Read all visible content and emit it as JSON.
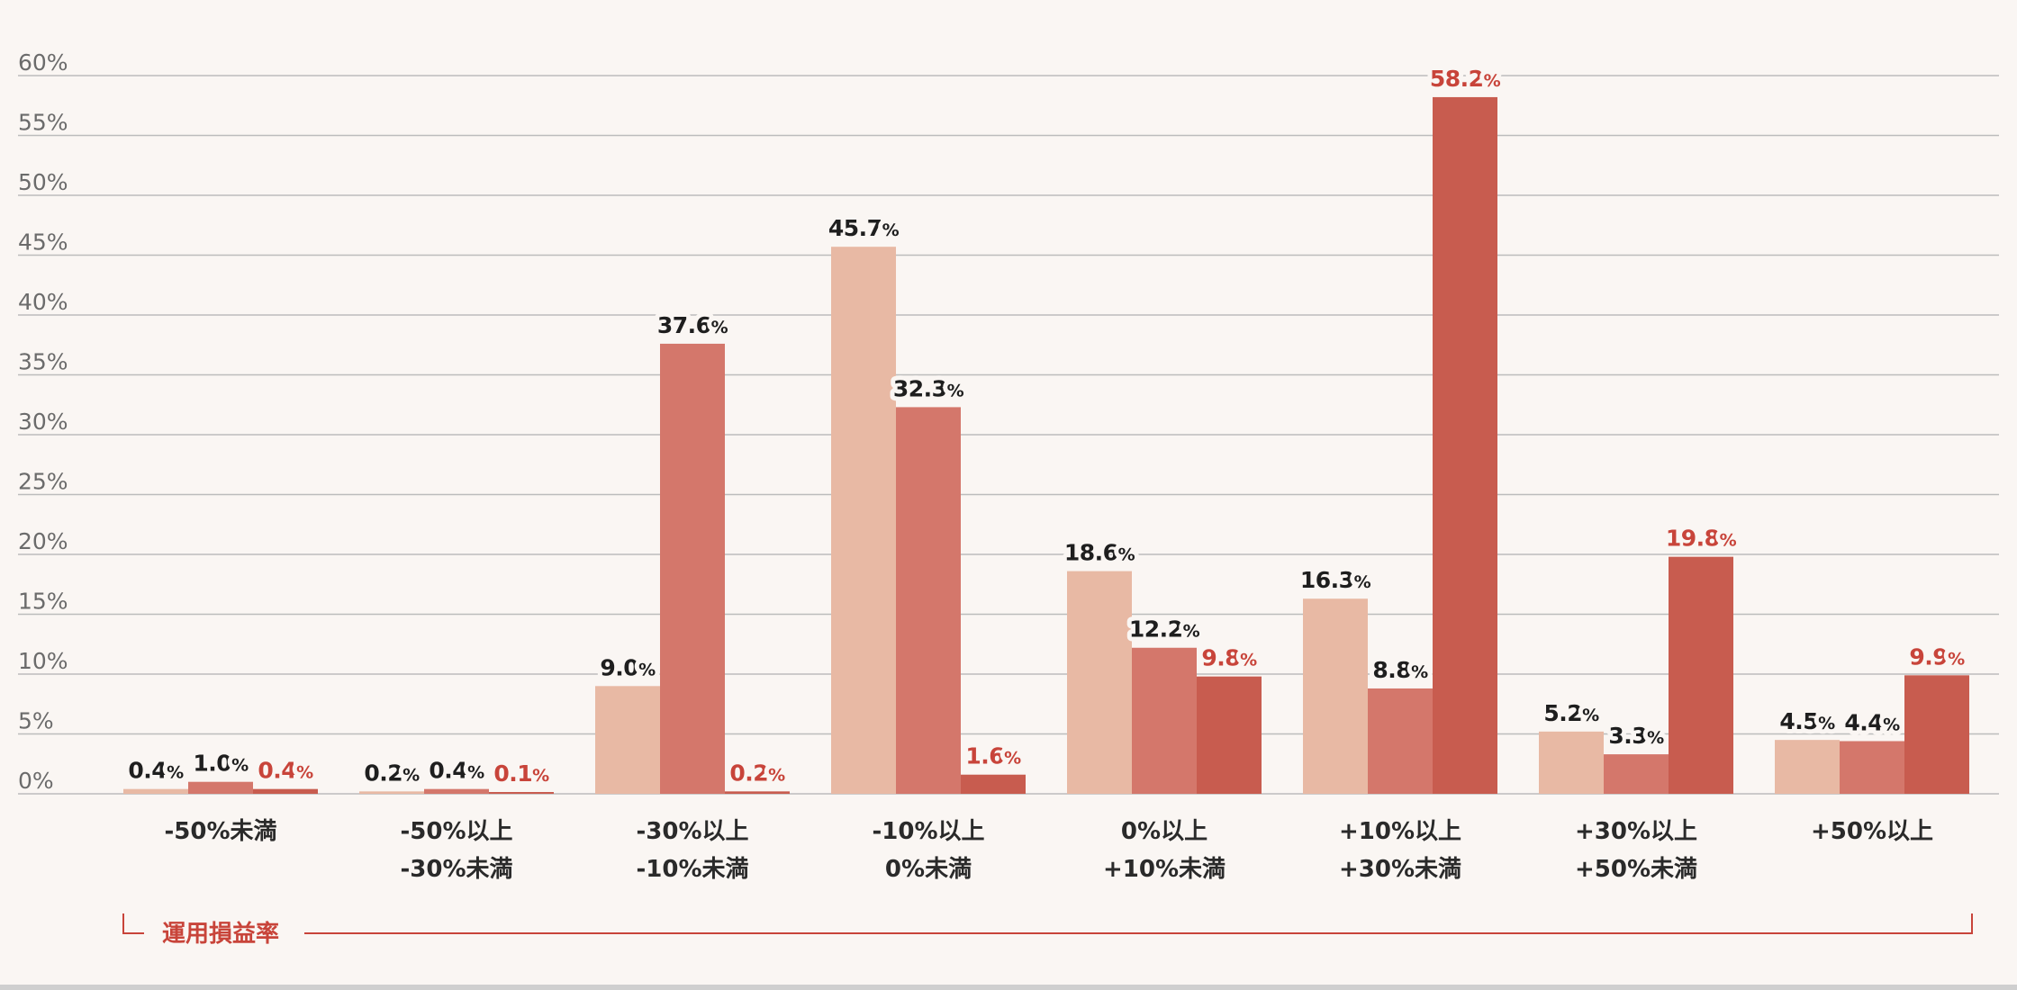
{
  "chart_data": {
    "type": "bar",
    "categories": [
      [
        "-50%未満"
      ],
      [
        "-50%以上",
        "-30%未満"
      ],
      [
        "-30%以上",
        "-10%未満"
      ],
      [
        "-10%以上",
        "0%未満"
      ],
      [
        "0%以上",
        "+10%未満"
      ],
      [
        "+10%以上",
        "+30%未満"
      ],
      [
        "+30%以上",
        "+50%未満"
      ],
      [
        "+50%以上"
      ]
    ],
    "series": [
      {
        "color": "#e8b9a4",
        "label_color": "#1e1e1e",
        "values": [
          0.4,
          0.2,
          9.0,
          45.7,
          18.6,
          16.3,
          5.2,
          4.5
        ]
      },
      {
        "color": "#d4776b",
        "label_color": "#1e1e1e",
        "values": [
          1.0,
          0.4,
          37.6,
          32.3,
          12.2,
          8.8,
          3.3,
          4.4
        ]
      },
      {
        "color": "#c85c4f",
        "label_color": "#c8443a",
        "values": [
          0.4,
          0.1,
          0.2,
          1.6,
          9.8,
          58.2,
          19.8,
          9.9
        ]
      }
    ],
    "ylim": [
      0,
      60
    ],
    "yticks": [
      "0%",
      "5%",
      "10%",
      "15%",
      "20%",
      "25%",
      "30%",
      "35%",
      "40%",
      "45%",
      "50%",
      "55%",
      "60%"
    ],
    "grid": true,
    "xlabel": "運用損益率",
    "value_suffix": "%"
  }
}
